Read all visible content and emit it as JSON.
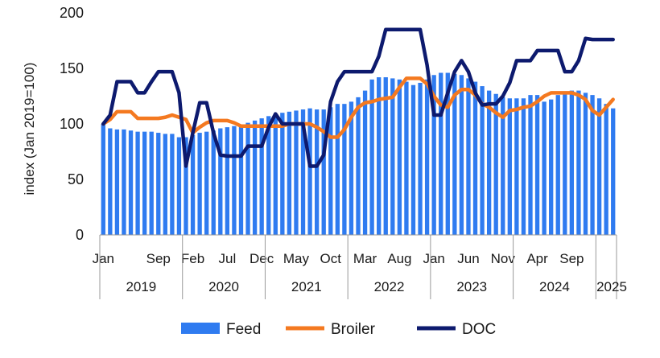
{
  "chart_data": {
    "type": "bar+line",
    "title": "",
    "ylabel": "index (Jan 2019=100)",
    "ylim": [
      0,
      200
    ],
    "yticks": [
      0,
      50,
      100,
      150,
      200
    ],
    "months": [
      "2019-01",
      "2019-02",
      "2019-03",
      "2019-04",
      "2019-05",
      "2019-06",
      "2019-07",
      "2019-08",
      "2019-09",
      "2019-10",
      "2019-11",
      "2019-12",
      "2020-01",
      "2020-02",
      "2020-03",
      "2020-04",
      "2020-05",
      "2020-06",
      "2020-07",
      "2020-08",
      "2020-09",
      "2020-10",
      "2020-11",
      "2020-12",
      "2021-01",
      "2021-02",
      "2021-03",
      "2021-04",
      "2021-05",
      "2021-06",
      "2021-07",
      "2021-08",
      "2021-09",
      "2021-10",
      "2021-11",
      "2021-12",
      "2022-01",
      "2022-02",
      "2022-03",
      "2022-04",
      "2022-05",
      "2022-06",
      "2022-07",
      "2022-08",
      "2022-09",
      "2022-10",
      "2022-11",
      "2022-12",
      "2023-01",
      "2023-02",
      "2023-03",
      "2023-04",
      "2023-05",
      "2023-06",
      "2023-07",
      "2023-08",
      "2023-09",
      "2023-10",
      "2023-11",
      "2023-12",
      "2024-01",
      "2024-02",
      "2024-03",
      "2024-04",
      "2024-05",
      "2024-06",
      "2024-07",
      "2024-08",
      "2024-09",
      "2024-10",
      "2024-11",
      "2024-12",
      "2025-01",
      "2025-02",
      "2025-03"
    ],
    "month_tick_labels": [
      {
        "index": 0,
        "label": "Jan"
      },
      {
        "index": 8,
        "label": "Sep"
      },
      {
        "index": 13,
        "label": "Feb"
      },
      {
        "index": 18,
        "label": "Jul"
      },
      {
        "index": 23,
        "label": "Dec"
      },
      {
        "index": 28,
        "label": "May"
      },
      {
        "index": 33,
        "label": "Oct"
      },
      {
        "index": 38,
        "label": "Mar"
      },
      {
        "index": 43,
        "label": "Aug"
      },
      {
        "index": 48,
        "label": "Jan"
      },
      {
        "index": 53,
        "label": "Jun"
      },
      {
        "index": 58,
        "label": "Nov"
      },
      {
        "index": 63,
        "label": "Apr"
      },
      {
        "index": 68,
        "label": "Sep"
      }
    ],
    "years": [
      {
        "label": "2019",
        "start": 0,
        "end": 11
      },
      {
        "label": "2020",
        "start": 12,
        "end": 23
      },
      {
        "label": "2021",
        "start": 24,
        "end": 35
      },
      {
        "label": "2022",
        "start": 36,
        "end": 47
      },
      {
        "label": "2023",
        "start": 48,
        "end": 59
      },
      {
        "label": "2024",
        "start": 60,
        "end": 71
      },
      {
        "label": "2025",
        "start": 72,
        "end": 74
      }
    ],
    "series": [
      {
        "name": "Feed",
        "type": "bar",
        "color": "#2f7bf0",
        "values": [
          100,
          96,
          95,
          95,
          94,
          93,
          93,
          93,
          92,
          91,
          91,
          88,
          88,
          90,
          92,
          93,
          94,
          96,
          97,
          98,
          99,
          101,
          103,
          105,
          107,
          109,
          110,
          111,
          112,
          113,
          114,
          113,
          113,
          115,
          118,
          118,
          120,
          124,
          130,
          140,
          142,
          142,
          141,
          140,
          138,
          135,
          137,
          140,
          144,
          146,
          146,
          145,
          144,
          141,
          138,
          134,
          130,
          127,
          124,
          123,
          123,
          123,
          126,
          126,
          120,
          122,
          126,
          128,
          130,
          130,
          128,
          126,
          123,
          118,
          114
        ]
      },
      {
        "name": "Broiler",
        "type": "line",
        "color": "#f47920",
        "values": [
          100,
          104,
          111,
          111,
          111,
          105,
          105,
          105,
          105,
          106,
          108,
          106,
          104,
          92,
          97,
          101,
          103,
          103,
          103,
          101,
          98,
          98,
          98,
          98,
          98,
          98,
          98,
          100,
          100,
          100,
          100,
          97,
          93,
          88,
          88,
          95,
          106,
          115,
          119,
          120,
          122,
          123,
          124,
          133,
          141,
          141,
          141,
          136,
          125,
          117,
          115,
          126,
          131,
          131,
          126,
          118,
          115,
          110,
          106,
          112,
          113,
          115,
          116,
          120,
          125,
          128,
          128,
          128,
          128,
          126,
          122,
          112,
          108,
          115,
          122
        ]
      },
      {
        "name": "DOC",
        "type": "line",
        "color": "#0d1a6e",
        "values": [
          100,
          108,
          138,
          138,
          138,
          128,
          128,
          138,
          147,
          147,
          147,
          128,
          62,
          92,
          119,
          119,
          92,
          72,
          71,
          71,
          71,
          80,
          80,
          80,
          97,
          109,
          100,
          100,
          100,
          100,
          62,
          62,
          72,
          120,
          138,
          147,
          147,
          147,
          147,
          147,
          161,
          185,
          185,
          185,
          185,
          185,
          185,
          153,
          108,
          108,
          128,
          147,
          157,
          147,
          128,
          117,
          118,
          118,
          125,
          137,
          157,
          157,
          157,
          166,
          166,
          166,
          166,
          147,
          147,
          157,
          177,
          176,
          176,
          176,
          176
        ]
      }
    ],
    "legend": [
      "Feed",
      "Broiler",
      "DOC"
    ],
    "legend_position": "bottom"
  }
}
